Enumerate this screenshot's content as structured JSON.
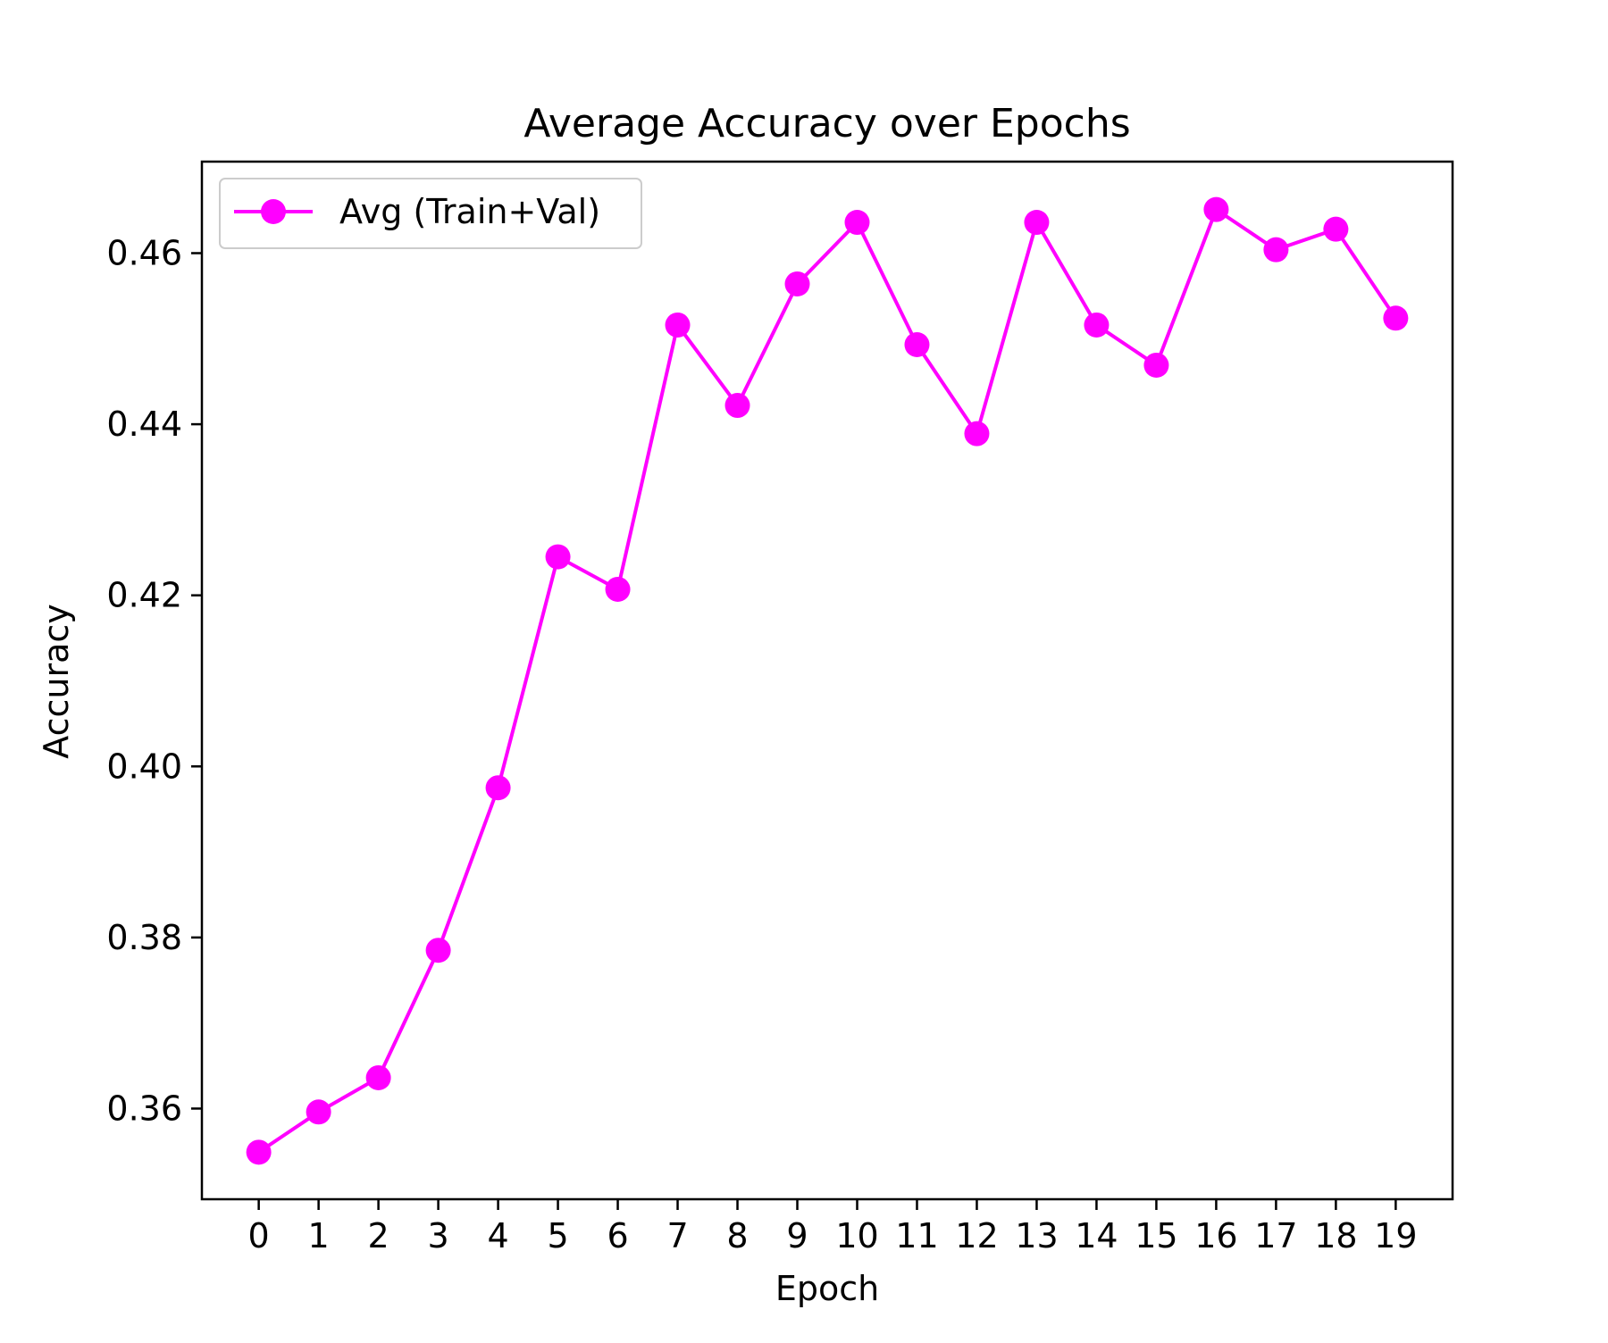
{
  "chart_data": {
    "type": "line",
    "title": "Average Accuracy over Epochs",
    "xlabel": "Epoch",
    "ylabel": "Accuracy",
    "xlim": [
      -0.95,
      19.95
    ],
    "ylim": [
      0.3494,
      0.4707
    ],
    "x": [
      0,
      1,
      2,
      3,
      4,
      5,
      6,
      7,
      8,
      9,
      10,
      11,
      12,
      13,
      14,
      15,
      16,
      17,
      18,
      19
    ],
    "x_tick_labels": [
      "0",
      "1",
      "2",
      "3",
      "4",
      "5",
      "6",
      "7",
      "8",
      "9",
      "10",
      "11",
      "12",
      "13",
      "14",
      "15",
      "16",
      "17",
      "18",
      "19"
    ],
    "y_ticks": [
      0.36,
      0.38,
      0.4,
      0.42,
      0.44,
      0.46
    ],
    "y_tick_labels": [
      "0.36",
      "0.38",
      "0.40",
      "0.42",
      "0.44",
      "0.46"
    ],
    "grid": false,
    "legend_position": "top-left",
    "series": [
      {
        "name": "Avg (Train+Val)",
        "color": "#ff00ff",
        "marker": "circle",
        "values": [
          0.3549,
          0.3596,
          0.3636,
          0.3785,
          0.3975,
          0.4245,
          0.4207,
          0.4516,
          0.4422,
          0.4564,
          0.4636,
          0.4493,
          0.4389,
          0.4636,
          0.4516,
          0.4469,
          0.4651,
          0.4604,
          0.4628,
          0.4524
        ]
      }
    ]
  }
}
